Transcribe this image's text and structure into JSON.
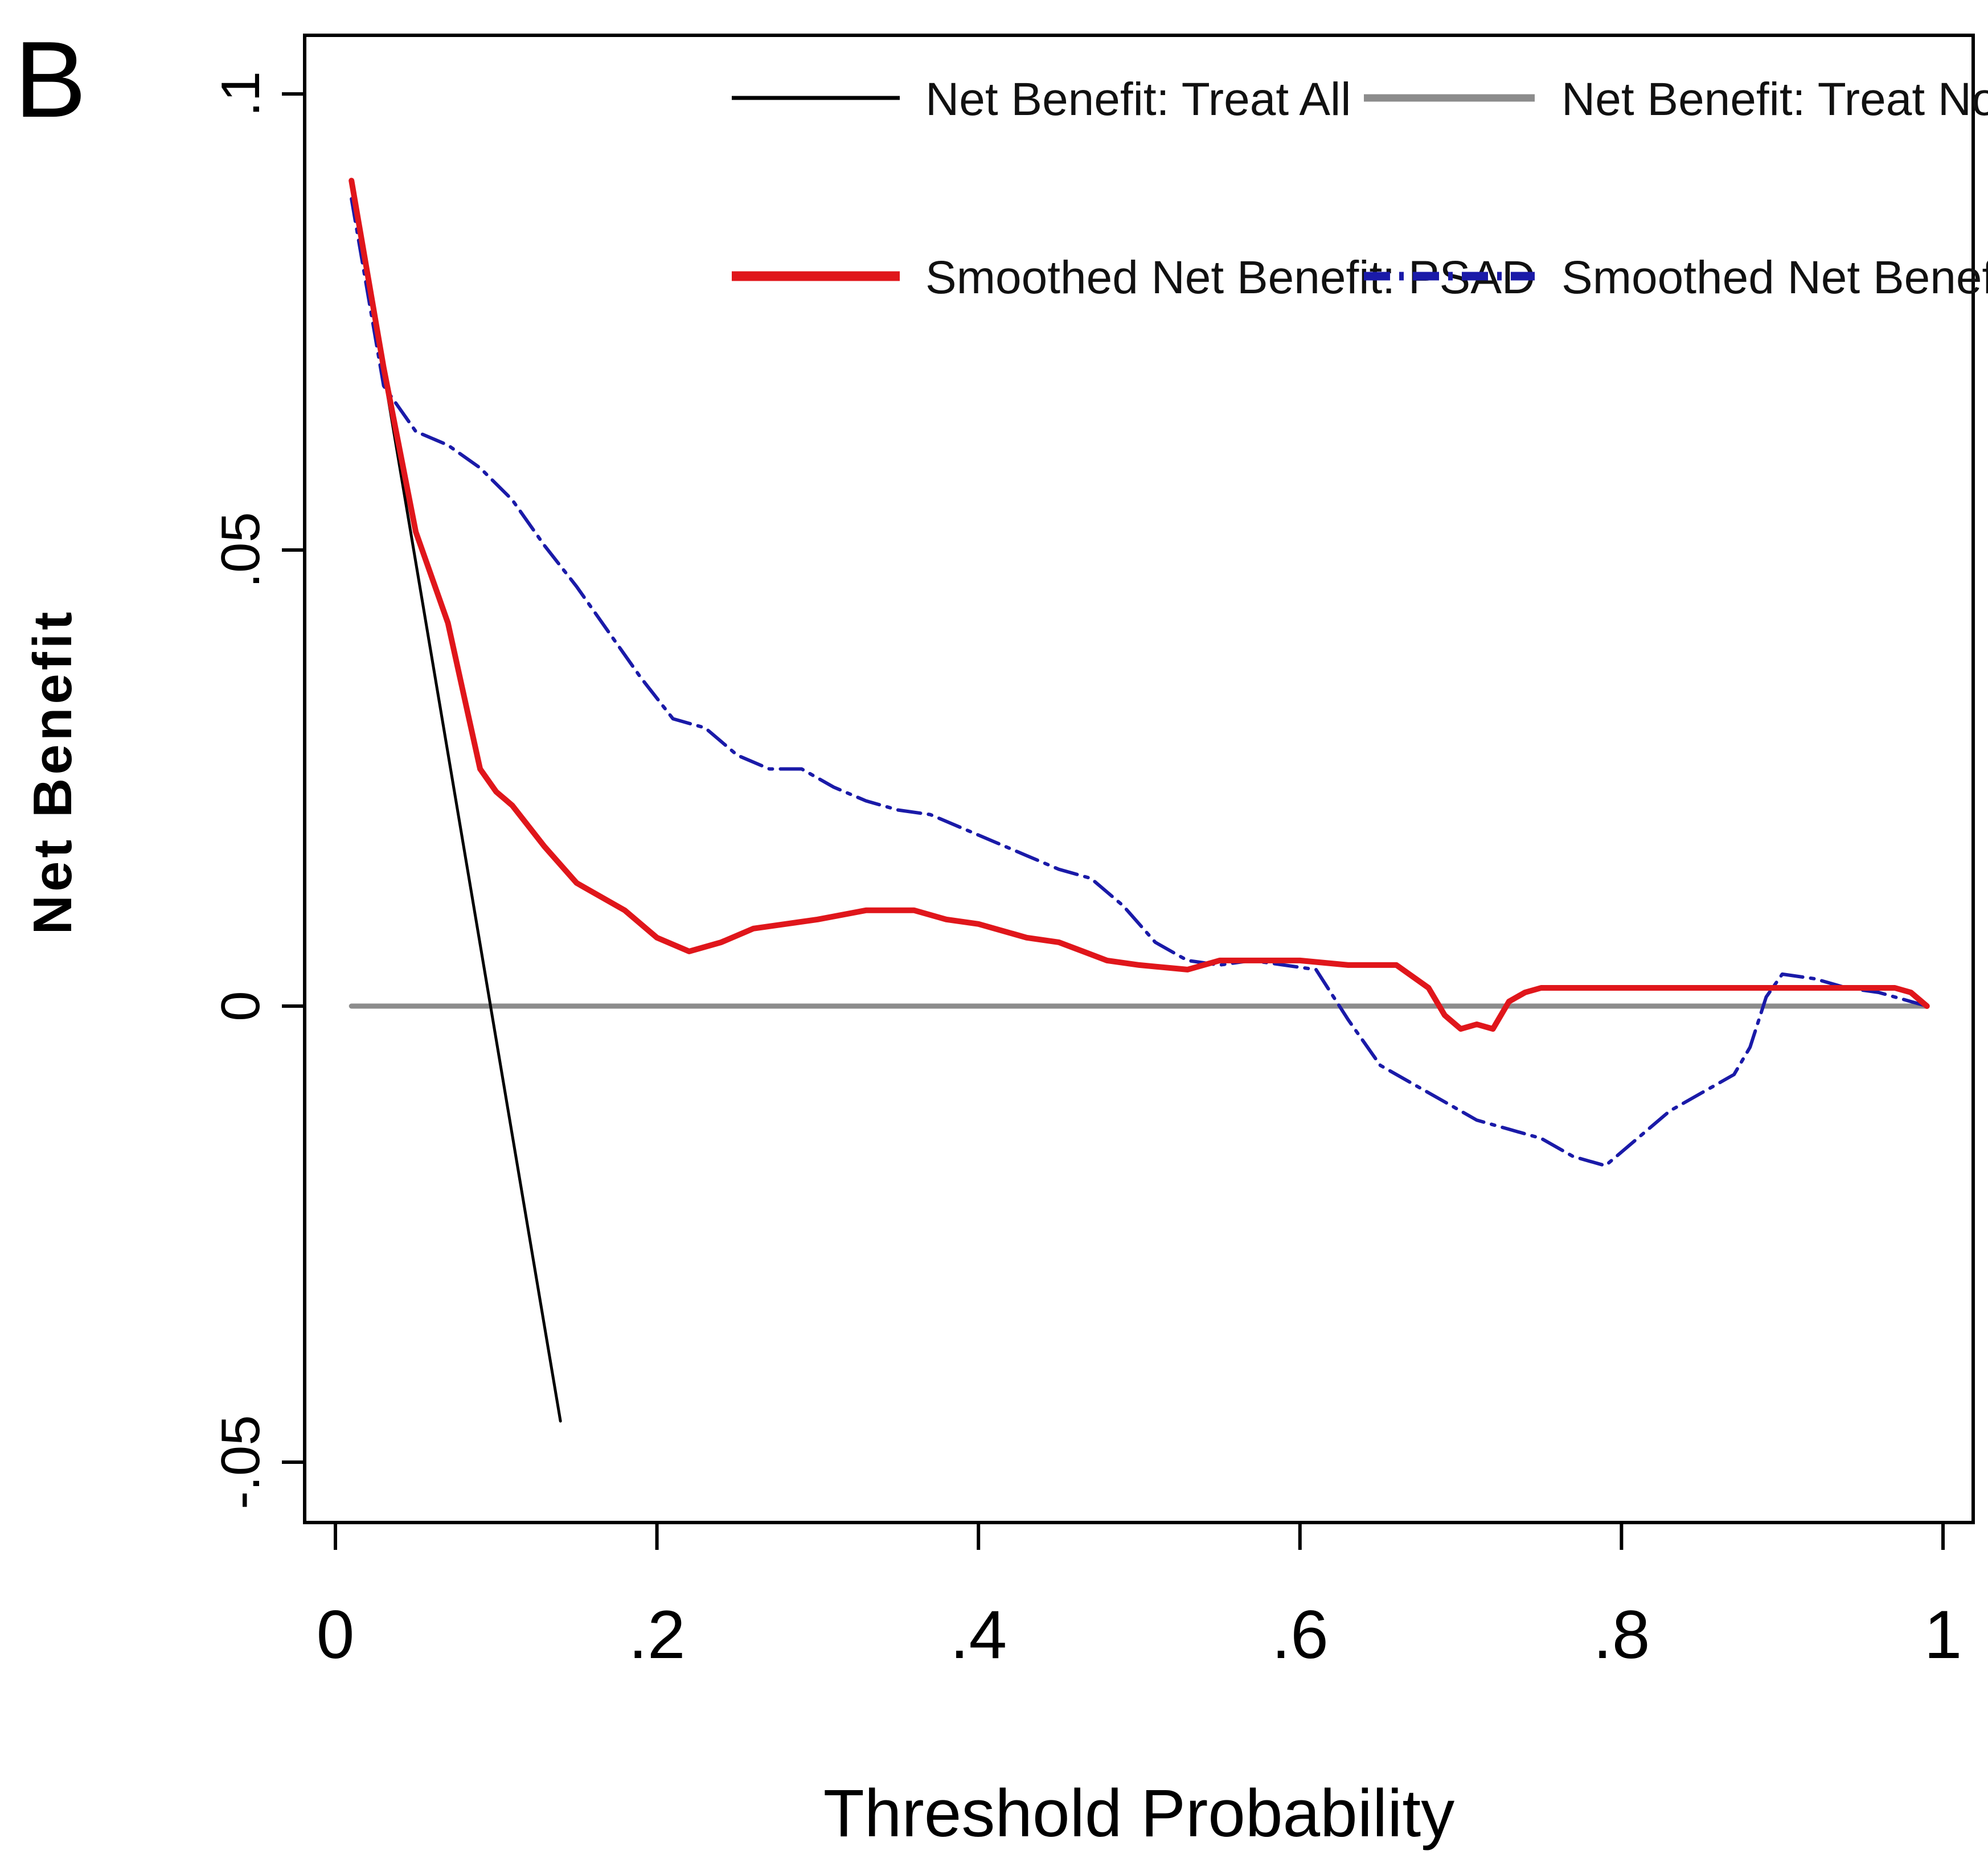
{
  "panel_label": "B",
  "colors": {
    "treat_all": "#000000",
    "treat_none": "#8c8c8c",
    "psad": "#e0161b",
    "model": "#1a1aa8"
  },
  "chart_data": {
    "type": "line",
    "title": "",
    "xlabel": "Threshold Probability",
    "ylabel": "Net Benefit",
    "xlim": [
      0,
      1
    ],
    "ylim": [
      -0.05,
      0.1
    ],
    "xticks": [
      0,
      0.2,
      0.4,
      0.6,
      0.8,
      1
    ],
    "xtick_labels": [
      "0",
      ".2",
      ".4",
      ".6",
      ".8",
      "1"
    ],
    "yticks": [
      -0.05,
      0,
      0.05,
      0.1
    ],
    "ytick_labels": [
      "-.05",
      "0",
      ".05",
      ".1"
    ],
    "grid": false,
    "legend_position": "top",
    "series": [
      {
        "name": "Net Benefit: Treat All",
        "style": "solid-thin",
        "x": [
          0.01,
          0.14
        ],
        "y": [
          0.0905,
          -0.0455
        ]
      },
      {
        "name": "Net Benefit: Treat None",
        "style": "solid-gray",
        "x": [
          0.01,
          0.99
        ],
        "y": [
          0,
          0
        ]
      },
      {
        "name": "Smoothed Net Benefit: PSAD",
        "style": "solid-thick",
        "x": [
          0.01,
          0.03,
          0.05,
          0.07,
          0.08,
          0.09,
          0.1,
          0.11,
          0.13,
          0.15,
          0.18,
          0.2,
          0.22,
          0.24,
          0.26,
          0.28,
          0.3,
          0.33,
          0.36,
          0.38,
          0.4,
          0.43,
          0.45,
          0.48,
          0.5,
          0.53,
          0.55,
          0.58,
          0.6,
          0.63,
          0.66,
          0.68,
          0.69,
          0.7,
          0.71,
          0.72,
          0.73,
          0.74,
          0.75,
          0.8,
          0.85,
          0.9,
          0.95,
          0.97,
          0.98,
          0.99
        ],
        "y": [
          0.0905,
          0.07,
          0.052,
          0.042,
          0.034,
          0.026,
          0.0235,
          0.022,
          0.0175,
          0.0135,
          0.0105,
          0.0075,
          0.006,
          0.007,
          0.0085,
          0.009,
          0.0095,
          0.0105,
          0.0105,
          0.0095,
          0.009,
          0.0075,
          0.007,
          0.005,
          0.0045,
          0.004,
          0.005,
          0.005,
          0.005,
          0.0045,
          0.0045,
          0.002,
          -0.001,
          -0.0025,
          -0.002,
          -0.0025,
          0.0005,
          0.0015,
          0.002,
          0.002,
          0.002,
          0.002,
          0.002,
          0.002,
          0.0015,
          0
        ]
      },
      {
        "name": "Smoothed Net Benefit: Model",
        "style": "dash-dot",
        "x": [
          0.01,
          0.03,
          0.05,
          0.07,
          0.09,
          0.11,
          0.13,
          0.15,
          0.17,
          0.19,
          0.21,
          0.23,
          0.25,
          0.27,
          0.29,
          0.31,
          0.33,
          0.35,
          0.37,
          0.39,
          0.41,
          0.43,
          0.45,
          0.47,
          0.49,
          0.51,
          0.53,
          0.55,
          0.57,
          0.59,
          0.61,
          0.63,
          0.65,
          0.67,
          0.69,
          0.71,
          0.73,
          0.75,
          0.77,
          0.79,
          0.81,
          0.83,
          0.85,
          0.87,
          0.88,
          0.89,
          0.9,
          0.92,
          0.94,
          0.96,
          0.98,
          0.99
        ],
        "y": [
          0.0885,
          0.068,
          0.063,
          0.0615,
          0.059,
          0.0555,
          0.0505,
          0.046,
          0.041,
          0.036,
          0.0315,
          0.0305,
          0.0275,
          0.026,
          0.026,
          0.024,
          0.0225,
          0.0215,
          0.021,
          0.0195,
          0.018,
          0.0165,
          0.015,
          0.014,
          0.011,
          0.007,
          0.005,
          0.0045,
          0.005,
          0.0045,
          0.004,
          -0.0015,
          -0.0065,
          -0.0085,
          -0.0105,
          -0.0125,
          -0.0135,
          -0.0145,
          -0.0165,
          -0.0175,
          -0.0145,
          -0.0115,
          -0.0095,
          -0.0075,
          -0.0045,
          0.001,
          0.0035,
          0.003,
          0.002,
          0.0015,
          0.0005,
          0
        ]
      }
    ]
  }
}
